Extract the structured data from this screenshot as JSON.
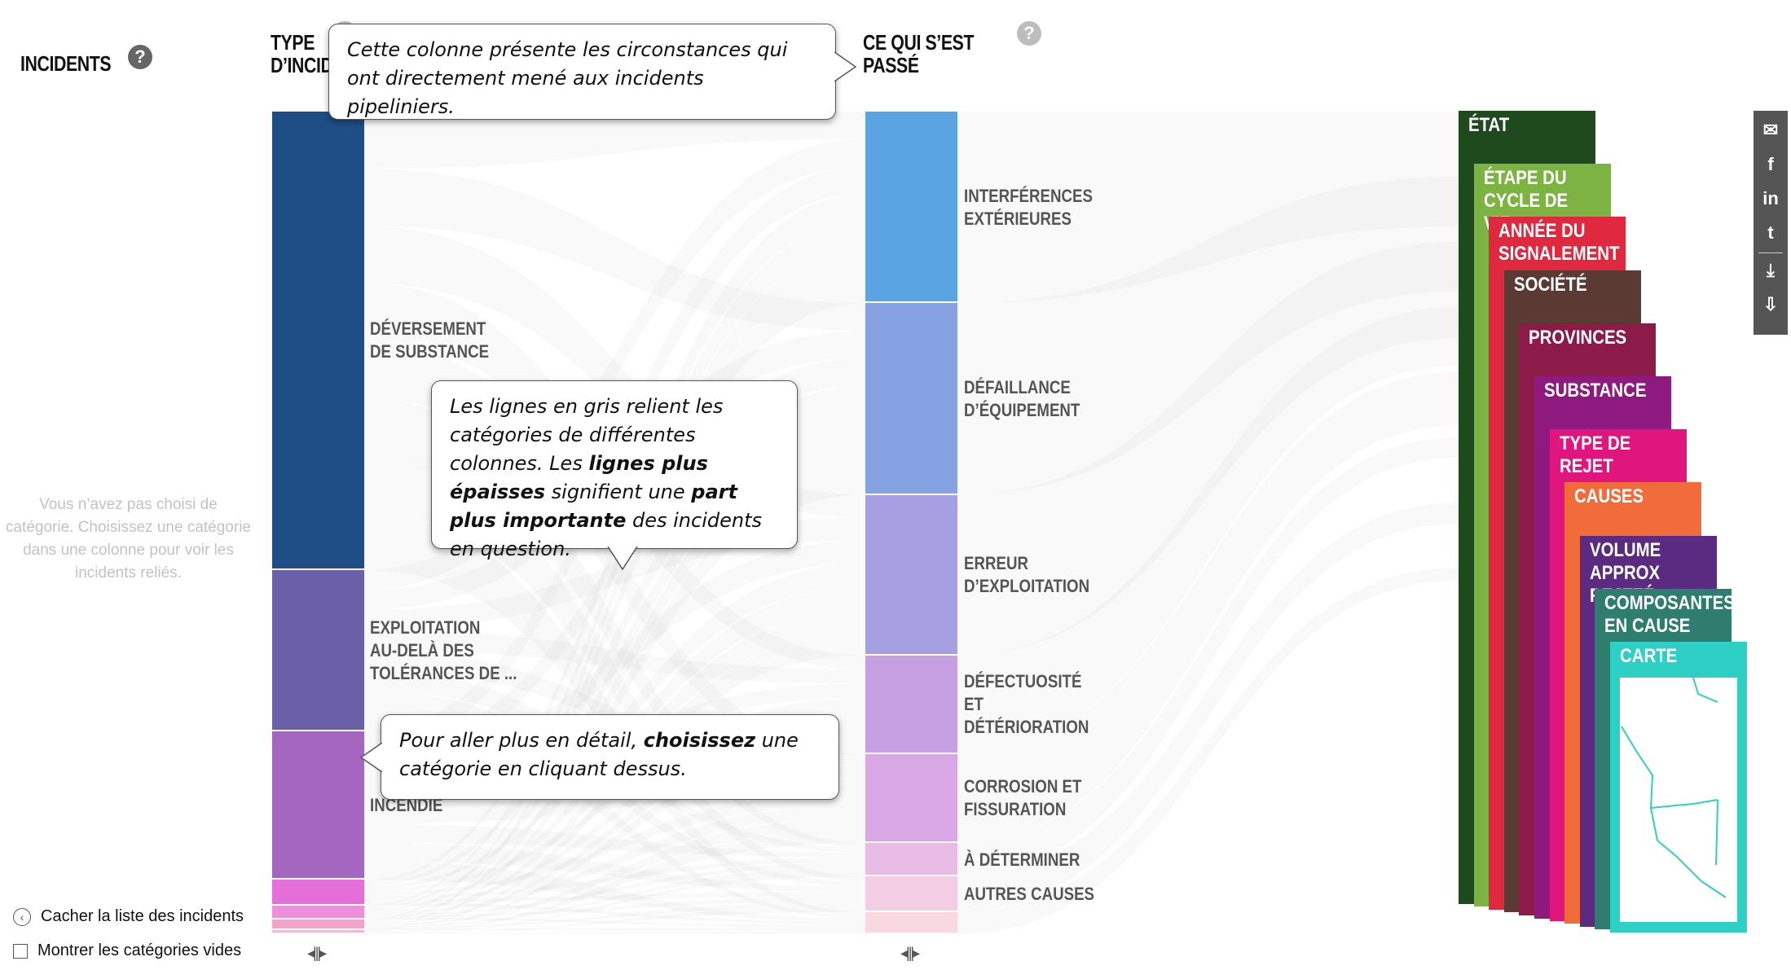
{
  "headers": {
    "incidents": "INCIDENTS",
    "type_incident_line1": "TYPE",
    "type_incident_line2": "D’INCIDENT",
    "what_happened_line1": "CE QUI S’EST",
    "what_happened_line2": "PASSÉ",
    "help_symbol": "?"
  },
  "left_panel": {
    "empty_message": "Vous n’avez pas choisi de catégorie. Choisissez une catégorie dans une colonne pour voir les incidents reliés.",
    "hide_list_label": "Cacher la liste des incidents",
    "show_empty_label": "Montrer les catégories vides",
    "show_empty_checked": false
  },
  "incident_types": [
    {
      "label": "DÉVERSEMENT\nDE SUBSTANCE",
      "color": "#1f4e87",
      "share": 0.557
    },
    {
      "label": "EXPLOITATION\nAU-DELÀ DES\nTOLÉRANCES DE ...",
      "color": "#6b5fa8",
      "share": 0.196
    },
    {
      "label": "INCENDIE",
      "color": "#a566c0",
      "share": 0.181
    },
    {
      "label": "",
      "color": "#e46fd9",
      "share": 0.031
    },
    {
      "label": "",
      "color": "#ee8fdb",
      "share": 0.017
    },
    {
      "label": "",
      "color": "#f3a3c9",
      "share": 0.013
    },
    {
      "label": "",
      "color": "#f7b7cf",
      "share": 0.005
    }
  ],
  "what_happened": [
    {
      "label": "INTERFÉRENCES\nEXTÉRIEURES",
      "color": "#5aa4e3",
      "share": 0.233
    },
    {
      "label": "DÉFAILLANCE\nD’ÉQUIPEMENT",
      "color": "#86a2e2",
      "share": 0.233
    },
    {
      "label": "ERREUR\nD’EXPLOITATION",
      "color": "#a69fe2",
      "share": 0.195
    },
    {
      "label": "DÉFECTUOSITÉ\nET\nDÉTÉRIORATION",
      "color": "#c7a0e3",
      "share": 0.12
    },
    {
      "label": "CORROSION ET\nFISSURATION",
      "color": "#d9a6e6",
      "share": 0.108
    },
    {
      "label": "À DÉTERMINER",
      "color": "#e9bce7",
      "share": 0.041
    },
    {
      "label": "AUTRES CAUSES",
      "color": "#f2cde3",
      "share": 0.043
    },
    {
      "label": "",
      "color": "#f9d8e0",
      "share": 0.027
    }
  ],
  "tooltips": {
    "column_info": "Cette colonne présente les circonstances qui ont directement mené aux incidents pipeliniers.",
    "grey_lines_a": "Les lignes en gris relient les catégories de différentes colonnes. Les ",
    "grey_lines_b": "lignes plus épaisses",
    "grey_lines_c": " signifient une ",
    "grey_lines_d": "part plus importante",
    "grey_lines_e": " des incidents en question.",
    "detail_a": "Pour aller plus en détail, ",
    "detail_b": "choisissez",
    "detail_c": " une catégorie en cliquant dessus."
  },
  "column_cards": [
    {
      "label": "ÉTAT",
      "color": "#1e4a1e"
    },
    {
      "label": "ÉTAPE DU\nCYCLE DE VIE",
      "color": "#7cb342"
    },
    {
      "label": "ANNÉE DU\nSIGNALEMENT",
      "color": "#e0283e"
    },
    {
      "label": "SOCIÉTÉ",
      "color": "#5a3a33"
    },
    {
      "label": "PROVINCES",
      "color": "#8c1b4a"
    },
    {
      "label": "SUBSTANCE",
      "color": "#8e1a80"
    },
    {
      "label": "TYPE DE REJET",
      "color": "#e0157d"
    },
    {
      "label": "CAUSES",
      "color": "#f26b3a"
    },
    {
      "label": "VOLUME\nAPPROX REJETÉ",
      "color": "#5b2b82"
    },
    {
      "label": "COMPOSANTES\nEN CAUSE",
      "color": "#2e7d6e"
    },
    {
      "label": "CARTE",
      "color": "#2ecfc5"
    }
  ],
  "share_icons": [
    "email-icon",
    "facebook-icon",
    "linkedin-icon",
    "twitter-icon",
    "image-download-icon",
    "data-download-icon"
  ],
  "share_glyphs": [
    "✉",
    "f",
    "in",
    "t",
    "⤓",
    "⇩"
  ]
}
